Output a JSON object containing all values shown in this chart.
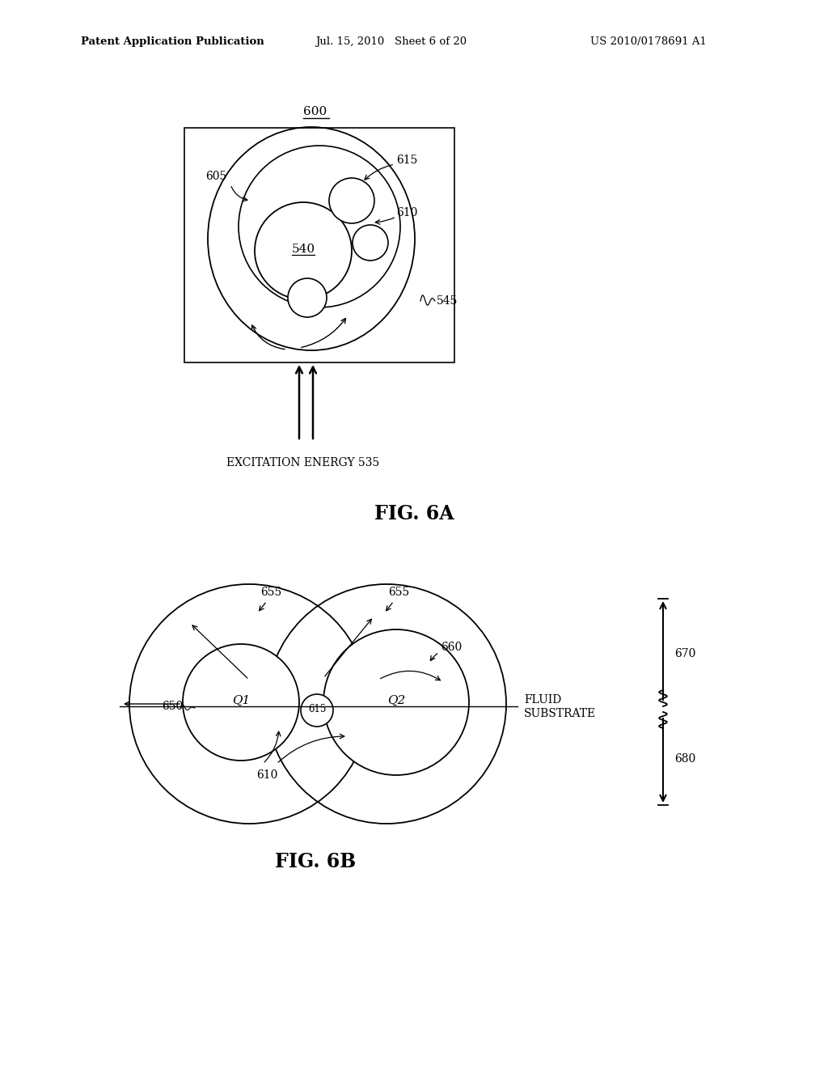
{
  "bg_color": "#ffffff",
  "header_left": "Patent Application Publication",
  "header_mid": "Jul. 15, 2010   Sheet 6 of 20",
  "header_right": "US 2010/0178691 A1",
  "fig6a_label": "FIG. 6A",
  "fig6b_label": "FIG. 6B",
  "label_600": "600",
  "label_605": "605",
  "label_615": "615",
  "label_610": "610",
  "label_540": "540",
  "label_545": "545",
  "label_535": "EXCITATION ENERGY 535",
  "label_655a": "655",
  "label_655b": "655",
  "label_660": "660",
  "label_650": "650",
  "label_615b": "615",
  "label_610b": "610",
  "label_Q1": "Q1",
  "label_Q2": "Q2",
  "label_670": "670",
  "label_680": "680",
  "label_fluid": "FLUID",
  "label_substrate": "SUBSTRATE",
  "line_color": "#000000",
  "text_color": "#000000"
}
